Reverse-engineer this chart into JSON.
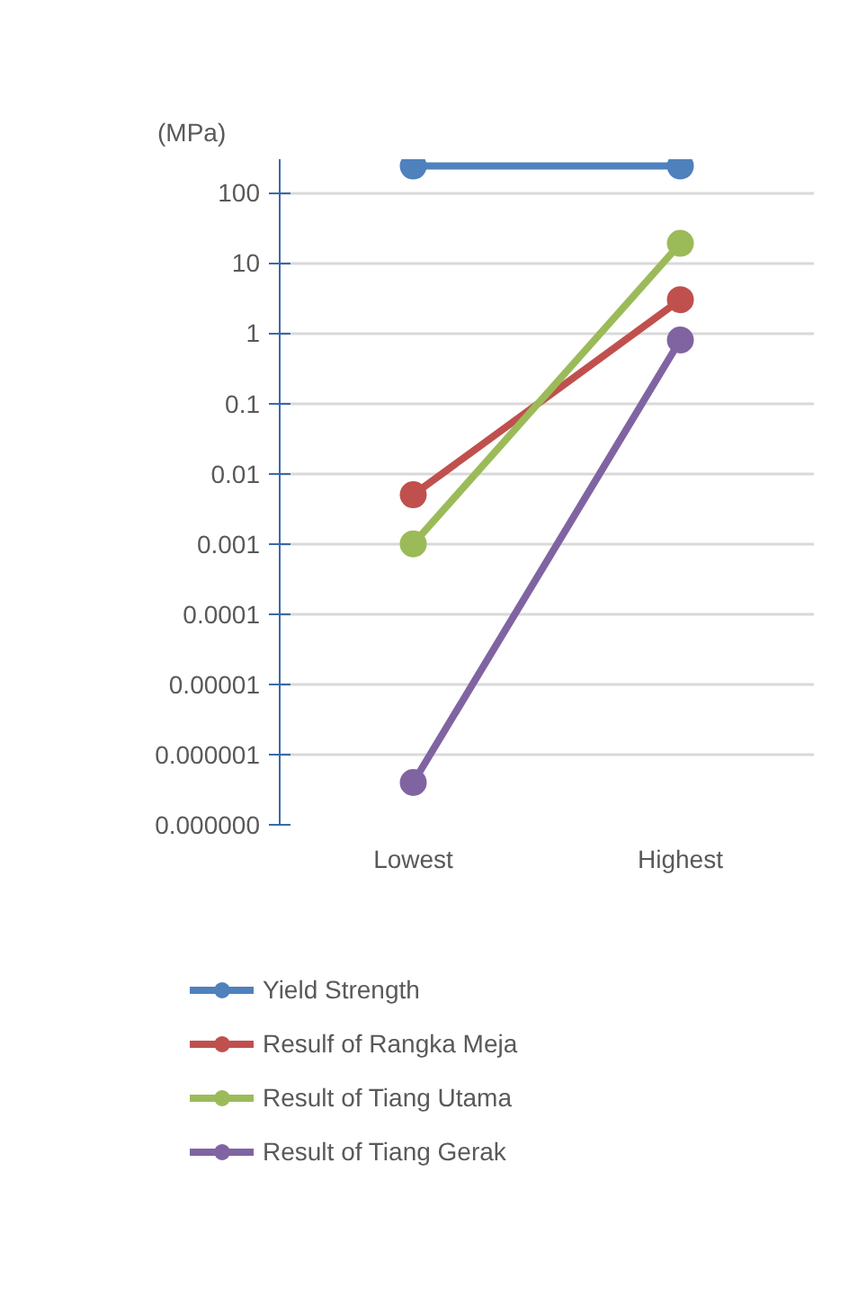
{
  "chart_data": {
    "type": "line",
    "ylabel": "(MPa)",
    "log": true,
    "categories": [
      "Lowest",
      "Highest"
    ],
    "ylim": [
      1e-07,
      300
    ],
    "yticks": [
      {
        "value": 1e-07,
        "label": "0.000000"
      },
      {
        "value": 1e-06,
        "label": "0.000001"
      },
      {
        "value": 1e-05,
        "label": "0.00001"
      },
      {
        "value": 0.0001,
        "label": "0.0001"
      },
      {
        "value": 0.001,
        "label": "0.001"
      },
      {
        "value": 0.01,
        "label": "0.01"
      },
      {
        "value": 0.1,
        "label": "0.1"
      },
      1,
      10,
      100
    ],
    "grid": "y",
    "legend": "bottom",
    "marker": "circle",
    "line_style": "solid",
    "series": [
      {
        "name": "Yield Strength",
        "color": "#4f81bd",
        "values": [
          240,
          240
        ]
      },
      {
        "name": "Resulf of Rangka Meja",
        "color": "#c0504d",
        "values": [
          0.005,
          3
        ]
      },
      {
        "name": "Result of Tiang Utama",
        "color": "#9bbb59",
        "values": [
          0.001,
          19
        ]
      },
      {
        "name": "Result of Tiang Gerak",
        "color": "#8064a2",
        "values": [
          4e-07,
          0.8
        ]
      }
    ]
  }
}
